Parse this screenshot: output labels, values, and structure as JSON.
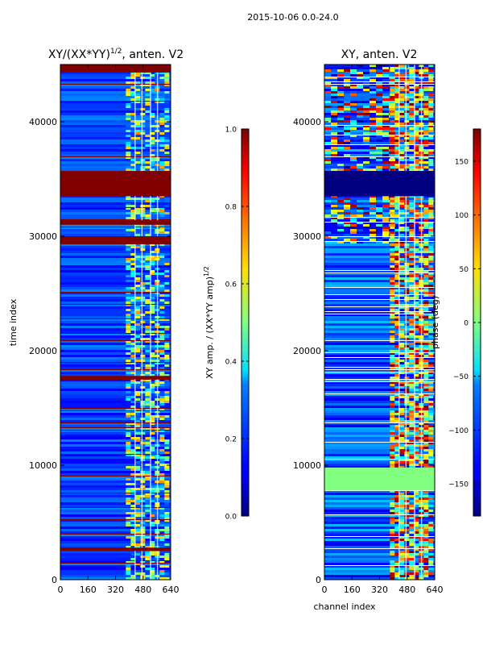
{
  "suptitle": "2015-10-06 0.0-24.0",
  "chart_data": [
    {
      "type": "heatmap",
      "title": "XY/(XX*YY)^{1/2}, anten. V2",
      "title_main": "XY/(XX*YY)",
      "title_exp": "1/2",
      "title_tail": ", anten. V2",
      "xlabel": "",
      "ylabel": "time index",
      "xlim": [
        0,
        640
      ],
      "ylim": [
        0,
        45000
      ],
      "xticks": [
        0,
        160,
        320,
        480,
        640
      ],
      "yticks": [
        0,
        10000,
        20000,
        30000,
        40000
      ],
      "colorbar": {
        "label_main": "XY amp. / (XX*YY amp)",
        "label_exp": "1/2",
        "range": [
          0.0,
          1.0
        ],
        "ticks": [
          0.0,
          0.2,
          0.4,
          0.6,
          0.8,
          1.0
        ],
        "tick_labels": [
          "0.0",
          "0.2",
          "0.4",
          "0.6",
          "0.8",
          "1.0"
        ]
      },
      "bands": [
        {
          "from": 33500,
          "to": 35700,
          "value": 1.0
        },
        {
          "from": 44300,
          "to": 45000,
          "value": 1.0
        },
        {
          "from": 29300,
          "to": 30000,
          "value": 1.0
        },
        {
          "from": 31000,
          "to": 31400,
          "value": 1.0
        },
        {
          "from": 17500,
          "to": 17800,
          "value": 1.0
        },
        {
          "from": 2500,
          "to": 2800,
          "value": 1.0
        }
      ]
    },
    {
      "type": "heatmap",
      "title": "XY, anten. V2",
      "xlabel": "channel index",
      "ylabel": "",
      "xlim": [
        0,
        640
      ],
      "ylim": [
        0,
        45000
      ],
      "xticks": [
        0,
        160,
        320,
        480,
        640
      ],
      "yticks": [
        0,
        10000,
        20000,
        30000,
        40000
      ],
      "colorbar": {
        "label": "phase (deg)",
        "range": [
          -180,
          180
        ],
        "ticks": [
          150,
          100,
          50,
          0,
          -50,
          -100,
          -150
        ],
        "tick_labels": [
          "150",
          "100",
          "50",
          "0",
          "−50",
          "−100",
          "−150"
        ]
      },
      "bands": [
        {
          "from": 33500,
          "to": 35700,
          "value": -180
        },
        {
          "from": 7800,
          "to": 9800,
          "value": 0
        }
      ]
    }
  ]
}
